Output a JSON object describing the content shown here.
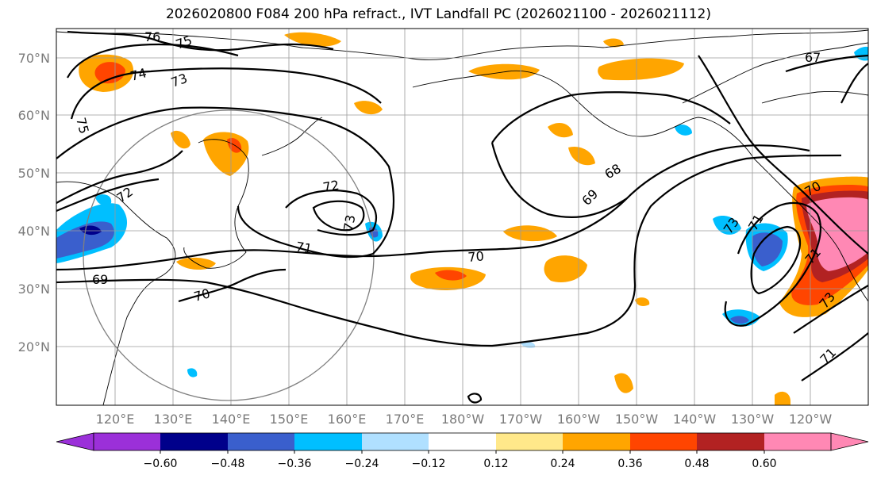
{
  "title": "2026020800 F084 200 hPa refract., IVT Landfall PC (2026021100 - 2026021112)",
  "lat_labels": [
    "70°N",
    "60°N",
    "50°N",
    "40°N",
    "30°N",
    "20°N"
  ],
  "lon_labels": [
    "120°E",
    "130°E",
    "140°E",
    "150°E",
    "160°E",
    "170°E",
    "180°W",
    "170°W",
    "160°W",
    "150°W",
    "140°W",
    "130°W",
    "120°W"
  ],
  "colorbar": {
    "ticks": [
      "−0.60",
      "−0.48",
      "−0.36",
      "−0.24",
      "−0.12",
      "0.12",
      "0.24",
      "0.36",
      "0.48",
      "0.60"
    ],
    "colors": [
      "#9b30d9",
      "#00008b",
      "#3a5fcd",
      "#00bfff",
      "#b0e0ff",
      "#ffffff",
      "#ffe88a",
      "#ffa500",
      "#ff4500",
      "#b22222",
      "#ff88b4"
    ]
  },
  "contour_labels": [
    "76",
    "75",
    "74",
    "73",
    "75",
    "72",
    "72",
    "73",
    "71",
    "69",
    "70",
    "70",
    "68",
    "69",
    "71",
    "73",
    "70",
    "71",
    "73",
    "67",
    "71"
  ],
  "colors": {
    "grid": "#9a9a9a",
    "circle": "#808080"
  }
}
